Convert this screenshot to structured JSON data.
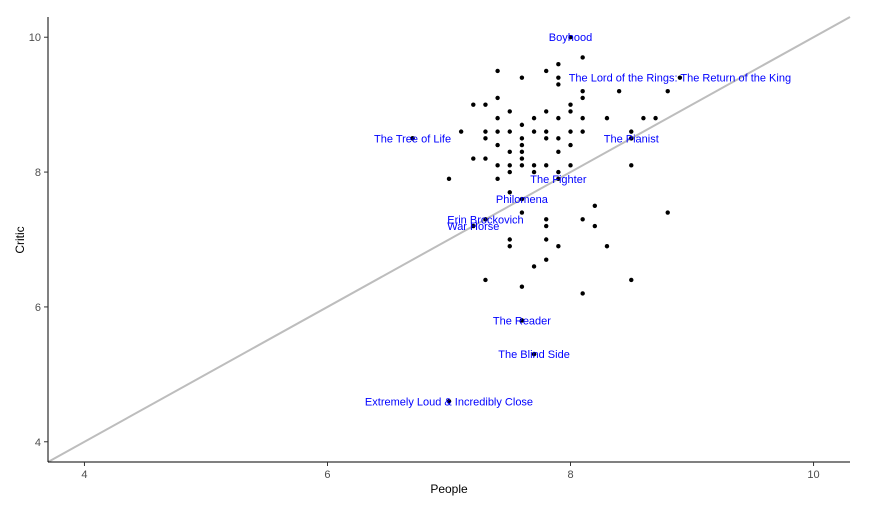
{
  "chart_data": {
    "type": "scatter",
    "xlabel": "People",
    "ylabel": "Critic",
    "xlim": [
      3.7,
      10.3
    ],
    "ylim": [
      3.7,
      10.3
    ],
    "x_ticks": [
      4,
      6,
      8,
      10
    ],
    "y_ticks": [
      4,
      6,
      8,
      10
    ],
    "reference_line": {
      "slope": 1,
      "intercept": 0,
      "color": "#bdbdbd"
    },
    "grid": false,
    "point_color": "#000000",
    "label_color": "#0000ff",
    "points": [
      {
        "x": 7.4,
        "y": 9.5
      },
      {
        "x": 7.6,
        "y": 9.4
      },
      {
        "x": 7.8,
        "y": 9.5
      },
      {
        "x": 7.9,
        "y": 9.4
      },
      {
        "x": 7.9,
        "y": 9.3
      },
      {
        "x": 7.9,
        "y": 9.6
      },
      {
        "x": 8.1,
        "y": 9.7
      },
      {
        "x": 8.1,
        "y": 9.2
      },
      {
        "x": 8.1,
        "y": 9.1
      },
      {
        "x": 8.4,
        "y": 9.2
      },
      {
        "x": 8.8,
        "y": 9.2
      },
      {
        "x": 7.2,
        "y": 9.0
      },
      {
        "x": 7.3,
        "y": 9.0
      },
      {
        "x": 7.4,
        "y": 9.1
      },
      {
        "x": 7.5,
        "y": 8.9
      },
      {
        "x": 7.8,
        "y": 8.9
      },
      {
        "x": 8.0,
        "y": 9.0
      },
      {
        "x": 8.0,
        "y": 8.9
      },
      {
        "x": 7.4,
        "y": 8.8
      },
      {
        "x": 7.7,
        "y": 8.8
      },
      {
        "x": 7.9,
        "y": 8.8
      },
      {
        "x": 8.1,
        "y": 8.8
      },
      {
        "x": 8.3,
        "y": 8.8
      },
      {
        "x": 8.6,
        "y": 8.8
      },
      {
        "x": 8.7,
        "y": 8.8
      },
      {
        "x": 7.1,
        "y": 8.6
      },
      {
        "x": 7.3,
        "y": 8.6
      },
      {
        "x": 7.4,
        "y": 8.6
      },
      {
        "x": 7.5,
        "y": 8.6
      },
      {
        "x": 7.6,
        "y": 8.7
      },
      {
        "x": 7.7,
        "y": 8.6
      },
      {
        "x": 7.8,
        "y": 8.6
      },
      {
        "x": 8.0,
        "y": 8.6
      },
      {
        "x": 8.1,
        "y": 8.6
      },
      {
        "x": 8.5,
        "y": 8.6
      },
      {
        "x": 6.7,
        "y": 8.5
      },
      {
        "x": 7.3,
        "y": 8.5
      },
      {
        "x": 7.6,
        "y": 8.5
      },
      {
        "x": 7.8,
        "y": 8.5
      },
      {
        "x": 7.9,
        "y": 8.5
      },
      {
        "x": 8.5,
        "y": 8.5
      },
      {
        "x": 7.4,
        "y": 8.4
      },
      {
        "x": 7.6,
        "y": 8.4
      },
      {
        "x": 8.0,
        "y": 8.4
      },
      {
        "x": 7.5,
        "y": 8.3
      },
      {
        "x": 7.6,
        "y": 8.3
      },
      {
        "x": 7.9,
        "y": 8.3
      },
      {
        "x": 7.2,
        "y": 8.2
      },
      {
        "x": 7.3,
        "y": 8.2
      },
      {
        "x": 7.6,
        "y": 8.2
      },
      {
        "x": 7.4,
        "y": 8.1
      },
      {
        "x": 7.5,
        "y": 8.1
      },
      {
        "x": 7.6,
        "y": 8.1
      },
      {
        "x": 7.7,
        "y": 8.1
      },
      {
        "x": 7.8,
        "y": 8.1
      },
      {
        "x": 8.0,
        "y": 8.1
      },
      {
        "x": 8.5,
        "y": 8.1
      },
      {
        "x": 7.5,
        "y": 8.0
      },
      {
        "x": 7.7,
        "y": 8.0
      },
      {
        "x": 7.9,
        "y": 8.0
      },
      {
        "x": 7.0,
        "y": 7.9
      },
      {
        "x": 7.4,
        "y": 7.9
      },
      {
        "x": 7.5,
        "y": 7.7
      },
      {
        "x": 8.2,
        "y": 7.5
      },
      {
        "x": 7.6,
        "y": 7.4
      },
      {
        "x": 8.8,
        "y": 7.4
      },
      {
        "x": 7.8,
        "y": 7.3
      },
      {
        "x": 8.1,
        "y": 7.3
      },
      {
        "x": 7.8,
        "y": 7.2
      },
      {
        "x": 8.2,
        "y": 7.2
      },
      {
        "x": 7.5,
        "y": 7.0
      },
      {
        "x": 7.8,
        "y": 7.0
      },
      {
        "x": 7.5,
        "y": 6.9
      },
      {
        "x": 7.9,
        "y": 6.9
      },
      {
        "x": 8.3,
        "y": 6.9
      },
      {
        "x": 7.8,
        "y": 6.7
      },
      {
        "x": 7.7,
        "y": 6.6
      },
      {
        "x": 7.3,
        "y": 6.4
      },
      {
        "x": 8.5,
        "y": 6.4
      },
      {
        "x": 7.6,
        "y": 6.3
      },
      {
        "x": 8.1,
        "y": 6.2
      },
      {
        "x": 7.6,
        "y": 5.8
      },
      {
        "x": 7.7,
        "y": 5.3
      },
      {
        "x": 7.0,
        "y": 4.6
      }
    ],
    "labeled": [
      {
        "name": "Boyhood",
        "x": 8.0,
        "y": 10.0
      },
      {
        "name": "The Lord of the Rings: The Return of the King",
        "x": 8.9,
        "y": 9.4
      },
      {
        "name": "The Tree of Life",
        "x": 6.7,
        "y": 8.5
      },
      {
        "name": "The Pianist",
        "x": 8.5,
        "y": 8.5
      },
      {
        "name": "The Fighter",
        "x": 7.9,
        "y": 7.9
      },
      {
        "name": "Philomena",
        "x": 7.6,
        "y": 7.6
      },
      {
        "name": "Erin Brockovich",
        "x": 7.3,
        "y": 7.3
      },
      {
        "name": "War Horse",
        "x": 7.2,
        "y": 7.2
      },
      {
        "name": "The Reader",
        "x": 7.6,
        "y": 5.8
      },
      {
        "name": "The Blind Side",
        "x": 7.7,
        "y": 5.3
      },
      {
        "name": "Extremely Loud & Incredibly Close",
        "x": 7.0,
        "y": 4.6
      }
    ]
  }
}
